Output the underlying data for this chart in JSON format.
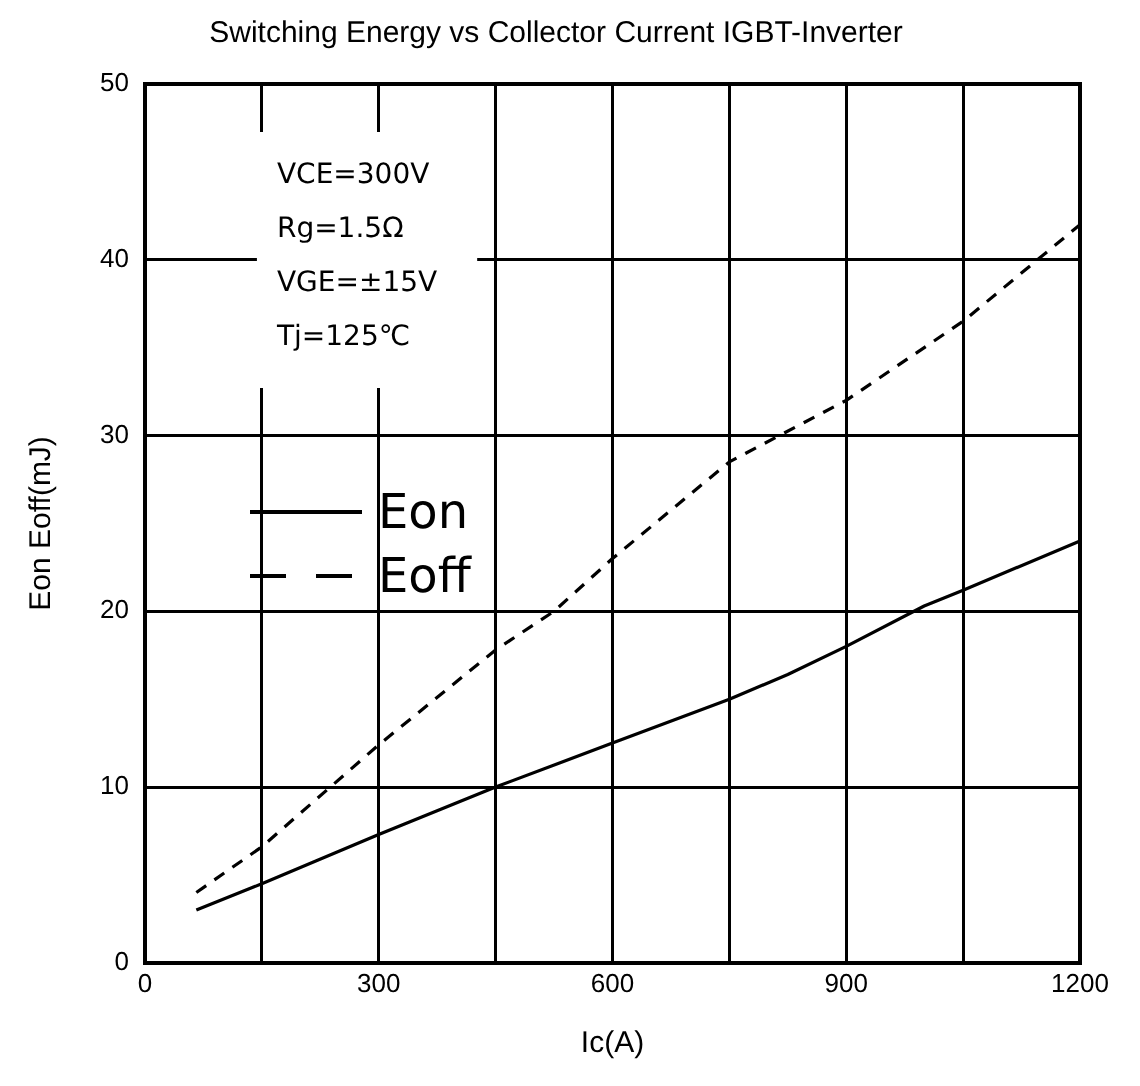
{
  "chart_data": {
    "type": "line",
    "title": "Switching Energy vs Collector Current IGBT-Inverter",
    "xlabel": "Ic(A)",
    "ylabel": "Eon Eoff(mJ)",
    "annotations": [
      "VCE=300V",
      "Rg=1.5Ω",
      "VGE=±15V",
      "Tj=125℃"
    ],
    "x": [
      66,
      150,
      300,
      450,
      600,
      750,
      825,
      900,
      1000,
      1050,
      1200
    ],
    "series": [
      {
        "name": "Eon",
        "color": "#000000",
        "line_style": "solid",
        "values": [
          3,
          4.5,
          7.3,
          10,
          12.5,
          15,
          16.4,
          18,
          20.3,
          21.2,
          24
        ]
      },
      {
        "name": "Eoff",
        "color": "#000000",
        "line_style": "dashed",
        "x": [
          66,
          150,
          300,
          450,
          525,
          600,
          750,
          900,
          1050,
          1200
        ],
        "values": [
          4,
          6.6,
          12.4,
          17.8,
          20,
          23,
          28.5,
          32,
          36.5,
          42
        ]
      }
    ],
    "xlim": [
      0,
      1200
    ],
    "xticks": [
      0,
      {
        "value": 150,
        "label": null
      },
      300,
      {
        "value": 450,
        "label": null
      },
      600,
      {
        "value": 750,
        "label": null
      },
      900,
      {
        "value": 1050,
        "label": null
      },
      1200
    ],
    "ylim": [
      0,
      50
    ],
    "yticks": [
      0,
      10,
      20,
      30,
      40,
      50
    ],
    "grid": true,
    "legend": "left",
    "marker": "none"
  }
}
